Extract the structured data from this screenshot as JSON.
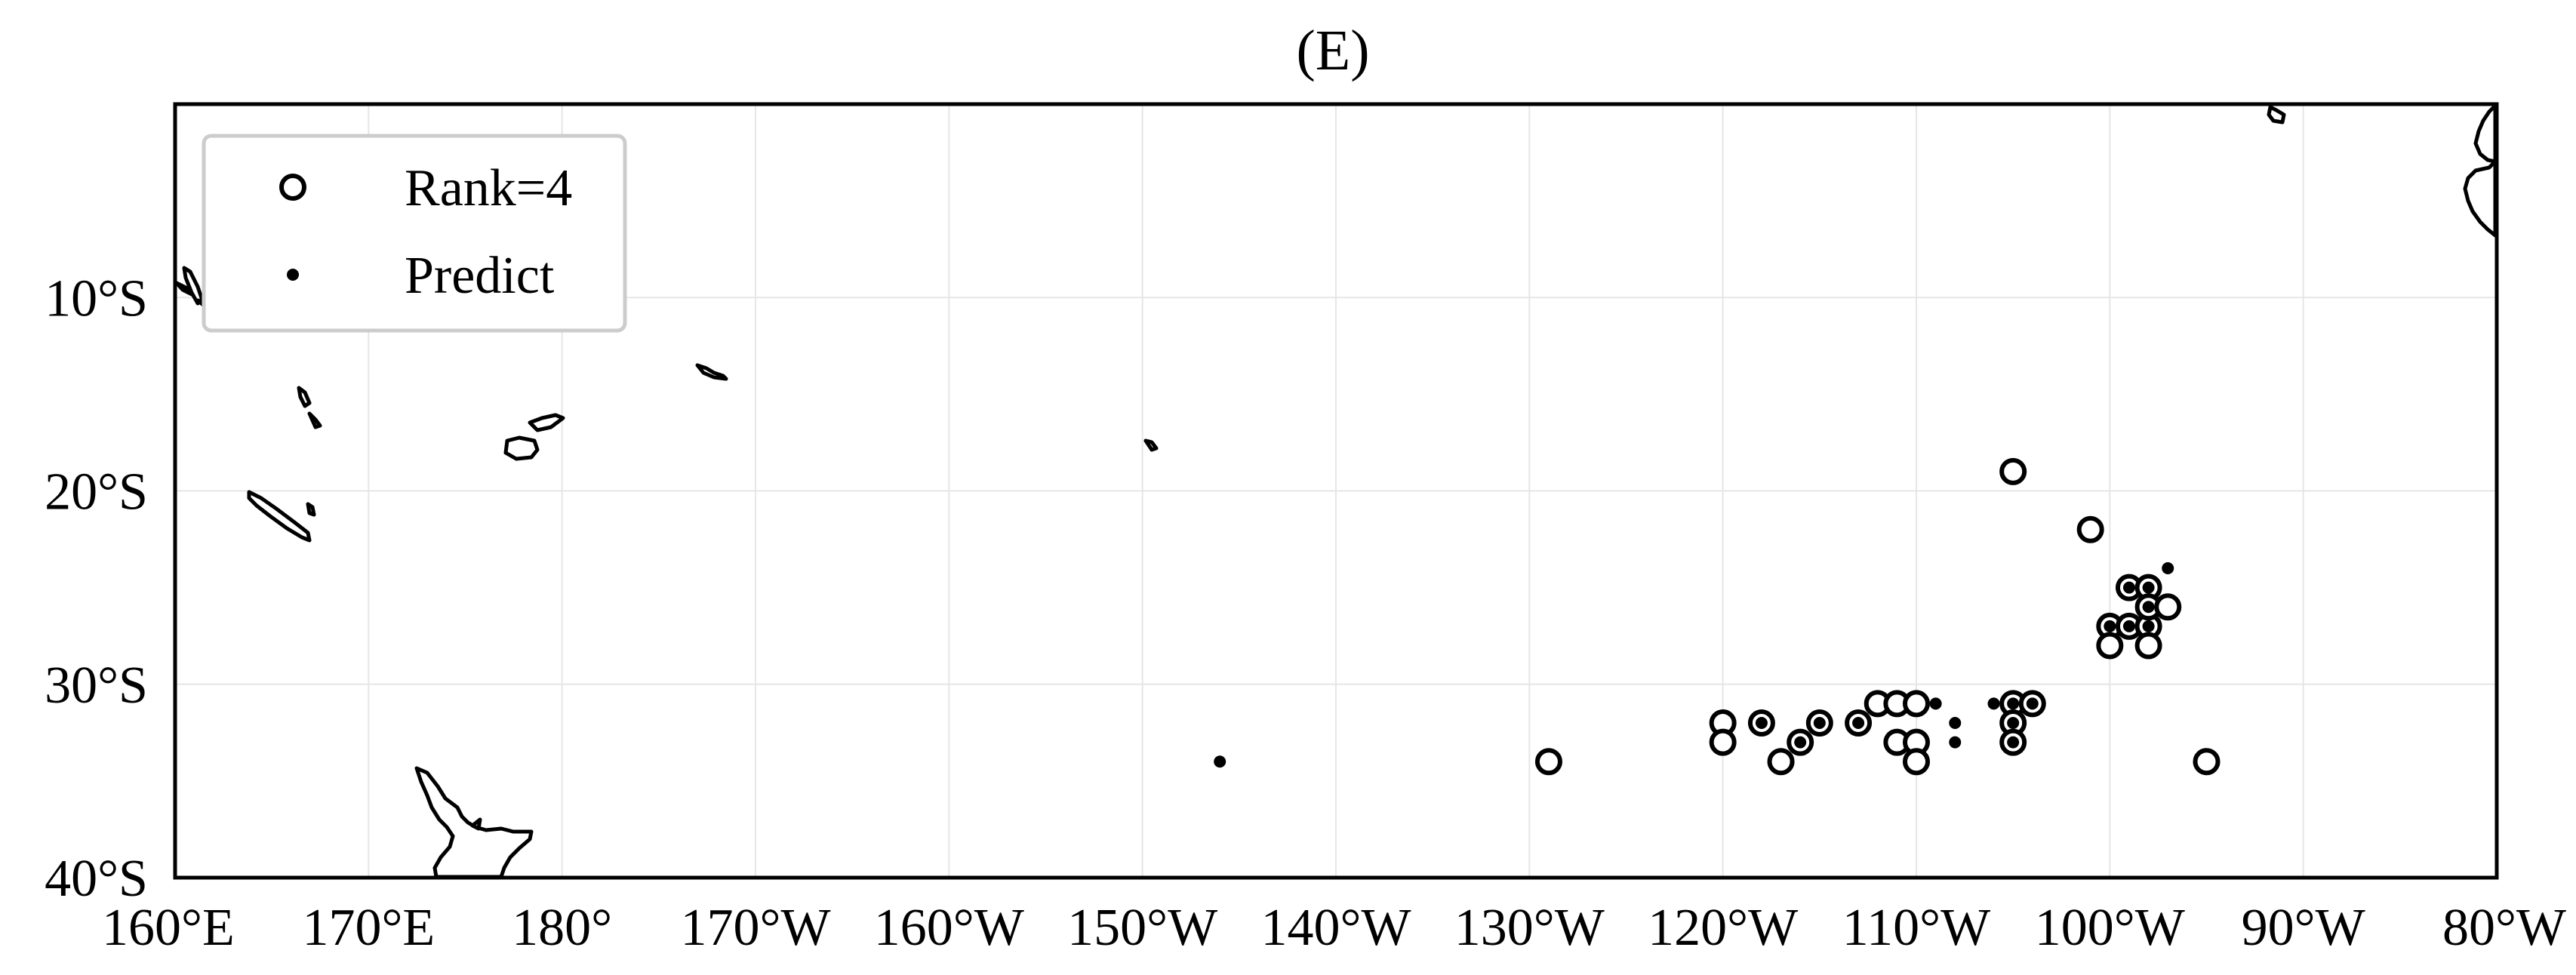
{
  "figure": {
    "title": "(E)"
  },
  "chart_data": {
    "type": "scatter",
    "title": "(E)",
    "projection": "plate carree, centred on 180°",
    "x_units": "longitude (east positive, continuous through 180: 200 = 160°W)",
    "y_units": "latitude (negative = south)",
    "xlim": [
      160,
      280
    ],
    "ylim": [
      -40,
      0
    ],
    "grid": true,
    "legend_position": "top-left",
    "x_ticks": [
      {
        "value": 160,
        "label": "160°E"
      },
      {
        "value": 170,
        "label": "170°E"
      },
      {
        "value": 180,
        "label": "180°"
      },
      {
        "value": 190,
        "label": "170°W"
      },
      {
        "value": 200,
        "label": "160°W"
      },
      {
        "value": 210,
        "label": "150°W"
      },
      {
        "value": 220,
        "label": "140°W"
      },
      {
        "value": 230,
        "label": "130°W"
      },
      {
        "value": 240,
        "label": "120°W"
      },
      {
        "value": 250,
        "label": "110°W"
      },
      {
        "value": 260,
        "label": "100°W"
      },
      {
        "value": 270,
        "label": "90°W"
      },
      {
        "value": 280,
        "label": "80°W"
      }
    ],
    "y_ticks": [
      {
        "value": -10,
        "label": "10°S"
      },
      {
        "value": -20,
        "label": "20°S"
      },
      {
        "value": -30,
        "label": "30°S"
      },
      {
        "value": -40,
        "label": "40°S"
      }
    ],
    "series": [
      {
        "name": "Rank=4",
        "marker": "open-circle",
        "points": [
          [
            255,
            -19
          ],
          [
            259,
            -22
          ],
          [
            261,
            -25
          ],
          [
            262,
            -25
          ],
          [
            260,
            -27
          ],
          [
            261,
            -27
          ],
          [
            262,
            -27
          ],
          [
            262,
            -26
          ],
          [
            263,
            -26
          ],
          [
            260,
            -28
          ],
          [
            262,
            -28
          ],
          [
            265,
            -34
          ],
          [
            231,
            -34
          ],
          [
            240,
            -32
          ],
          [
            240,
            -33
          ],
          [
            242,
            -32
          ],
          [
            243,
            -34
          ],
          [
            244,
            -33
          ],
          [
            245,
            -32
          ],
          [
            247,
            -32
          ],
          [
            248,
            -31
          ],
          [
            249,
            -31
          ],
          [
            250,
            -31
          ],
          [
            249,
            -33
          ],
          [
            250,
            -33
          ],
          [
            250,
            -34
          ],
          [
            255,
            -31
          ],
          [
            256,
            -31
          ],
          [
            255,
            -32
          ],
          [
            255,
            -33
          ]
        ]
      },
      {
        "name": "Predict",
        "marker": "dot",
        "points": [
          [
            261,
            -25
          ],
          [
            262,
            -25
          ],
          [
            263,
            -24
          ],
          [
            260,
            -27
          ],
          [
            261,
            -27
          ],
          [
            262,
            -27
          ],
          [
            262,
            -26
          ],
          [
            242,
            -32
          ],
          [
            244,
            -33
          ],
          [
            245,
            -32
          ],
          [
            247,
            -32
          ],
          [
            251,
            -31
          ],
          [
            252,
            -32
          ],
          [
            252,
            -33
          ],
          [
            254,
            -31
          ],
          [
            255,
            -31
          ],
          [
            256,
            -31
          ],
          [
            255,
            -32
          ],
          [
            255,
            -33
          ],
          [
            214,
            -34
          ]
        ]
      }
    ]
  },
  "colors": {
    "axis": "#000000",
    "grid": "#e6e6e6",
    "marker": "#000000",
    "marker_fill_open": "#ffffff",
    "legend_border": "#cccccc"
  }
}
